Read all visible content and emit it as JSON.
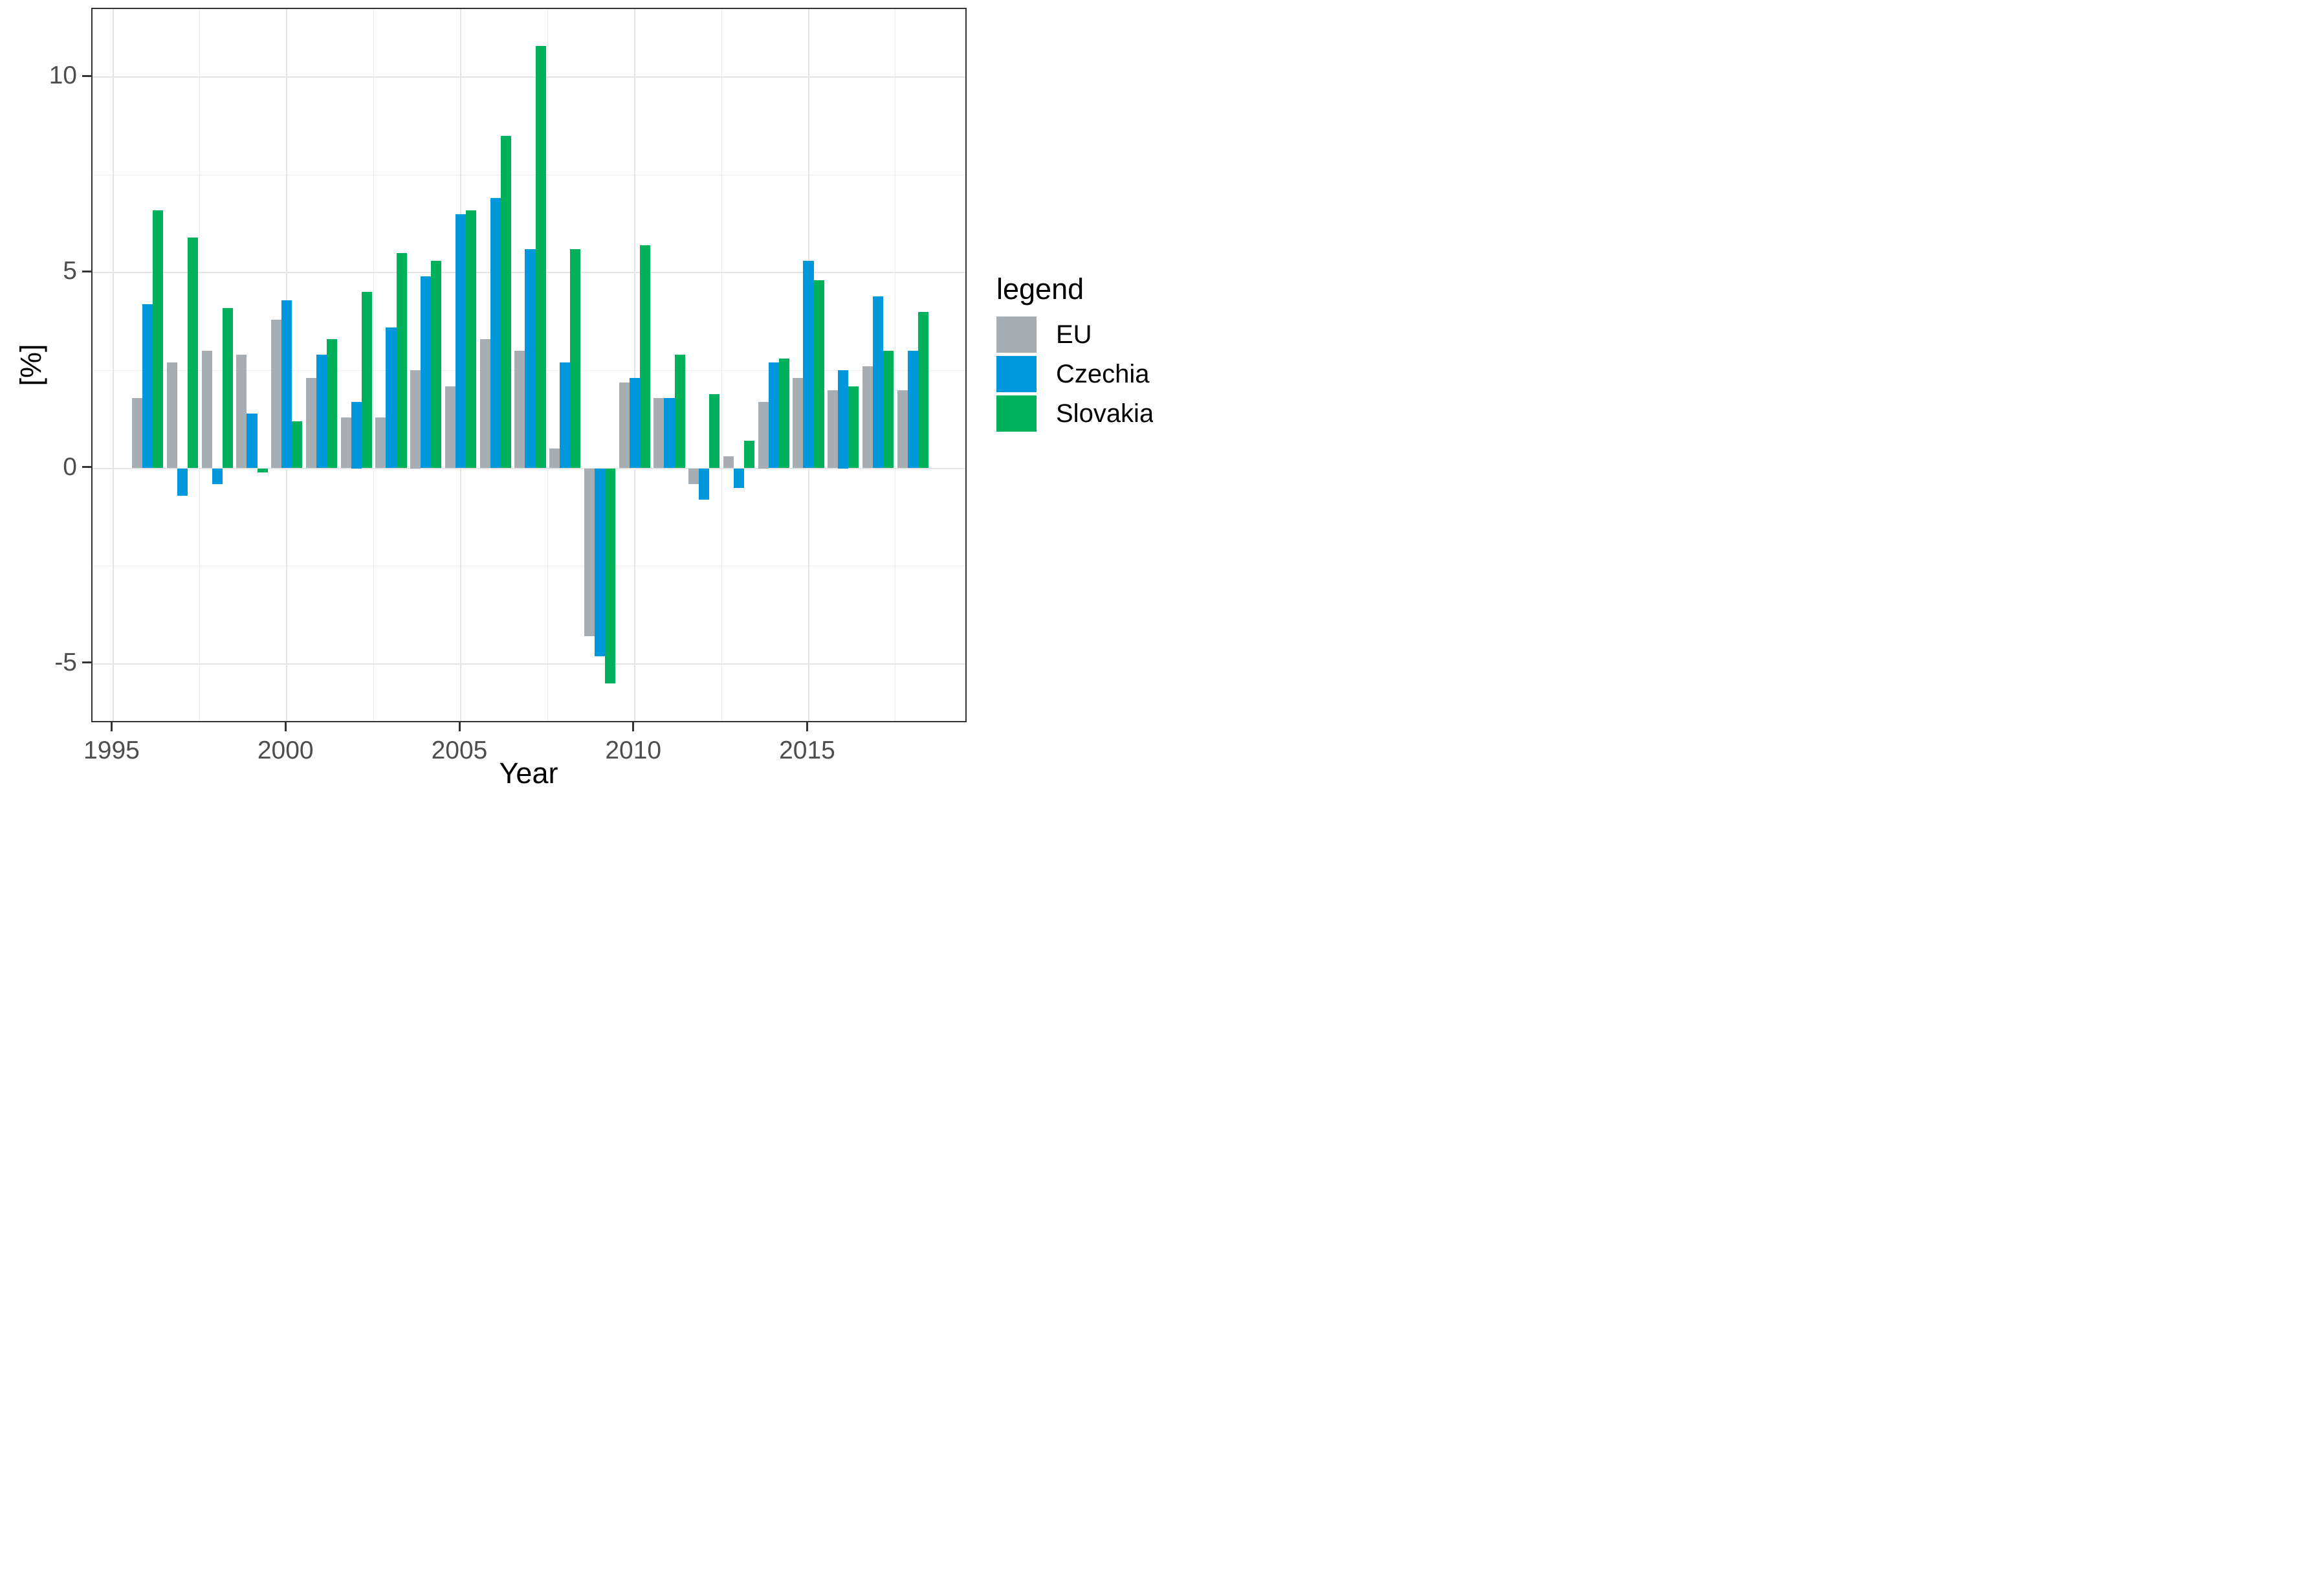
{
  "figure": {
    "y_axis_title": "[%]",
    "x_axis_title": "Year",
    "background_color": "#ffffff",
    "panel_border_color": "#333333",
    "grid_major_color": "#e4e4e4",
    "grid_minor_color": "#ececec",
    "tick_color": "#333333",
    "tick_label_color": "#4d4d4d"
  },
  "legend": {
    "title": "legend",
    "entries": [
      {
        "label": "EU",
        "color": "#a7aeb3"
      },
      {
        "label": "Czechia",
        "color": "#0098dc"
      },
      {
        "label": "Slovakia",
        "color": "#00b15c"
      }
    ]
  },
  "chart_data": {
    "type": "bar",
    "title": "",
    "xlabel": "Year",
    "ylabel": "[%]",
    "categories": [
      1996,
      1997,
      1998,
      1999,
      2000,
      2001,
      2002,
      2003,
      2004,
      2005,
      2006,
      2007,
      2008,
      2009,
      2010,
      2011,
      2012,
      2013,
      2014,
      2015,
      2016,
      2017,
      2018
    ],
    "series": [
      {
        "name": "EU",
        "color": "#a7aeb3",
        "values": [
          1.8,
          2.7,
          3.0,
          2.9,
          3.8,
          2.3,
          1.3,
          1.3,
          2.5,
          2.1,
          3.3,
          3.0,
          0.5,
          -4.3,
          2.2,
          1.8,
          -0.4,
          0.3,
          1.7,
          2.3,
          2.0,
          2.6,
          2.0
        ]
      },
      {
        "name": "Czechia",
        "color": "#0098dc",
        "values": [
          4.2,
          -0.7,
          -0.4,
          1.4,
          4.3,
          2.9,
          1.7,
          3.6,
          4.9,
          6.5,
          6.9,
          5.6,
          2.7,
          -4.8,
          2.3,
          1.8,
          -0.8,
          -0.5,
          2.7,
          5.3,
          2.5,
          4.4,
          3.0
        ]
      },
      {
        "name": "Slovakia",
        "color": "#00b15c",
        "values": [
          6.6,
          5.9,
          4.1,
          -0.1,
          1.2,
          3.3,
          4.5,
          5.5,
          5.3,
          6.6,
          8.5,
          10.8,
          5.6,
          -5.5,
          5.7,
          2.9,
          1.9,
          0.7,
          2.8,
          4.8,
          2.1,
          3.0,
          4.0
        ]
      }
    ],
    "y_ticks": [
      -5,
      0,
      5,
      10
    ],
    "y_minor_gridlines": [
      -2.5,
      2.5,
      7.5
    ],
    "x_ticks": [
      1995,
      2000,
      2005,
      2010,
      2015
    ],
    "x_minor_gridlines": [
      1997.5,
      2002.5,
      2007.5,
      2012.5,
      2017.5
    ],
    "ylim": [
      -6.53,
      11.74
    ],
    "xlim": [
      1994.4,
      2019.6
    ],
    "grid": true,
    "legend_position": "right"
  }
}
